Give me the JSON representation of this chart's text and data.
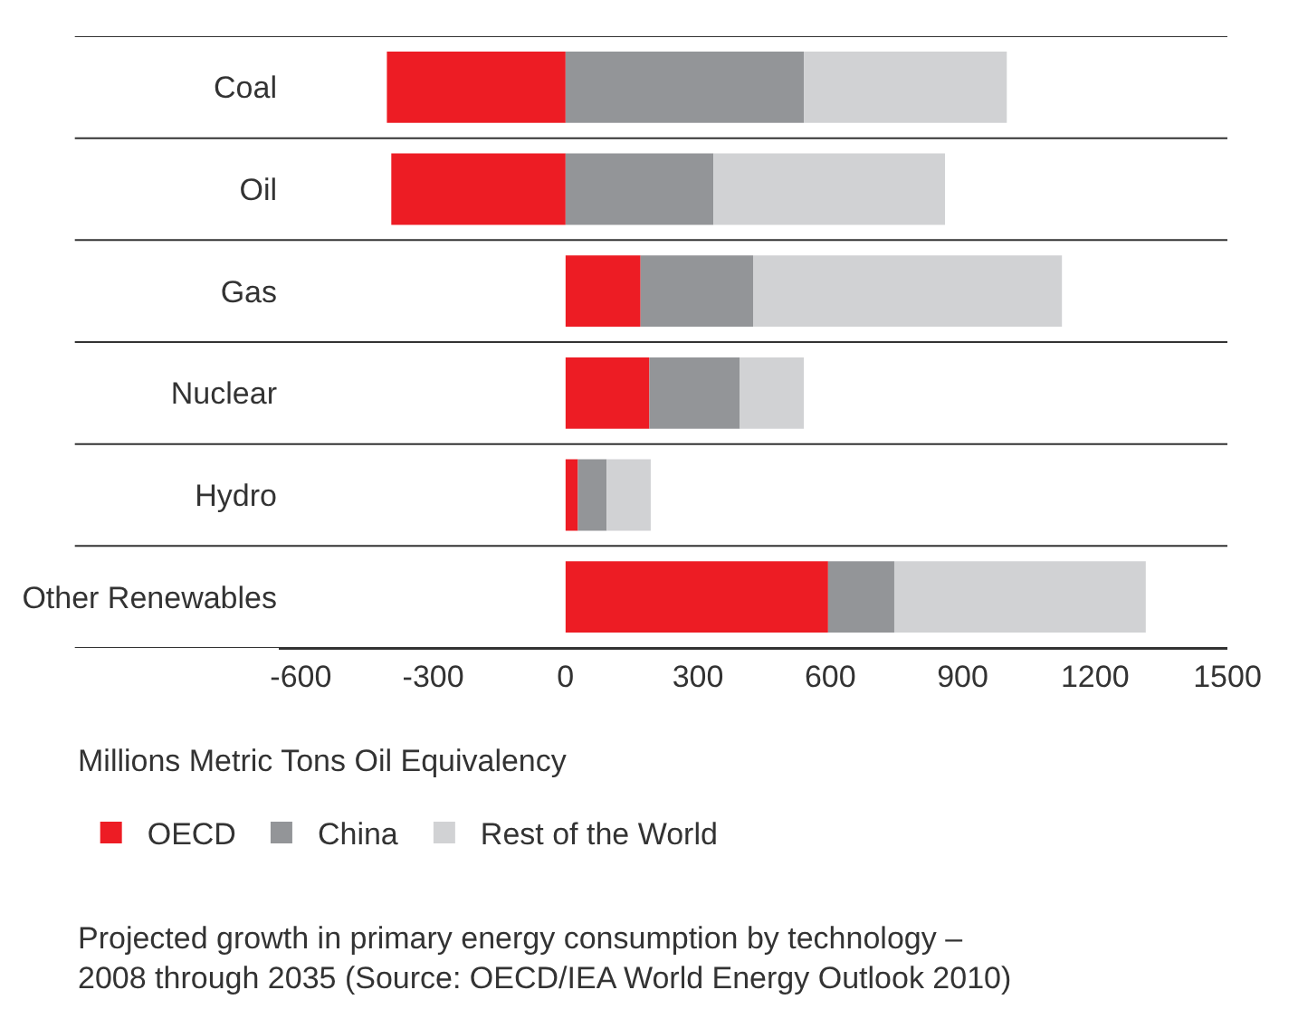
{
  "chart_data": {
    "type": "bar",
    "orientation": "horizontal",
    "stacked": true,
    "categories": [
      "Coal",
      "Oil",
      "Gas",
      "Nuclear",
      "Hydro",
      "Other Renewables"
    ],
    "series": [
      {
        "name": "OECD",
        "color": "#ed1c24",
        "values": [
          -405,
          -395,
          170,
          190,
          28,
          595
        ]
      },
      {
        "name": "China",
        "color": "#939598",
        "values": [
          540,
          335,
          255,
          205,
          65,
          150
        ]
      },
      {
        "name": "Rest of the World",
        "color": "#d1d2d4",
        "values": [
          460,
          525,
          700,
          145,
          100,
          570
        ]
      }
    ],
    "xlim": [
      -650,
      1500
    ],
    "xticks": [
      -600,
      -300,
      0,
      300,
      600,
      900,
      1200,
      1500
    ],
    "xlabel": "Millions Metric Tons Oil Equivalency",
    "grid": "y",
    "legend": "bottom left",
    "annotations": [
      "Projected growth in primary energy consumption by technology – 2008 through 2035 (Source: OECD/IEA World Energy Outlook 2010)"
    ]
  }
}
